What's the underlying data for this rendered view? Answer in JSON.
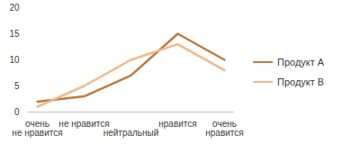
{
  "chart_data": {
    "type": "line",
    "categories": [
      "очень\nне нравится",
      "не нравится",
      "нейтральный",
      "нравится",
      "очень\nнравится"
    ],
    "series": [
      {
        "name": "Продукт A",
        "color": "#c07a3e",
        "values": [
          2,
          3,
          7,
          15,
          10
        ]
      },
      {
        "name": "Продукт B",
        "color": "#f2b88b",
        "values": [
          1,
          5,
          10,
          13,
          8
        ]
      }
    ],
    "ylim": [
      0,
      20
    ],
    "yticks": [
      0,
      5,
      10,
      15,
      20
    ],
    "grid": false,
    "legend": "right"
  }
}
